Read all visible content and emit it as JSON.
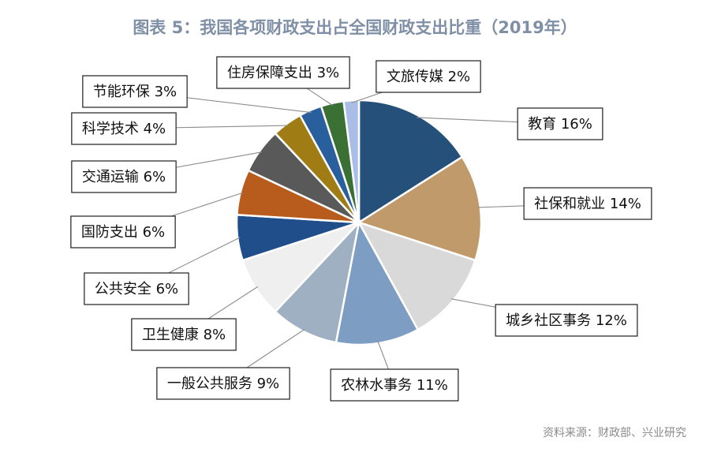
{
  "title": "图表 5：我国各项财政支出占全国财政支出比重（2019年）",
  "source": "资料来源：财政部、兴业研究",
  "chart_data": {
    "type": "pie",
    "title": "图表 5：我国各项财政支出占全国财政支出比重（2019年）",
    "unit": "%",
    "slices": [
      {
        "name": "教育",
        "value": 16,
        "label": "教育 16%",
        "color": "#24507a"
      },
      {
        "name": "社保和就业",
        "value": 14,
        "label": "社保和就业 14%",
        "color": "#c09a6b"
      },
      {
        "name": "城乡社区事务",
        "value": 12,
        "label": "城乡社区事务 12%",
        "color": "#d9d9d9"
      },
      {
        "name": "农林水事务",
        "value": 11,
        "label": "农林水事务 11%",
        "color": "#7d9ec2"
      },
      {
        "name": "一般公共服务",
        "value": 9,
        "label": "一般公共服务 9%",
        "color": "#9fb0c2"
      },
      {
        "name": "卫生健康",
        "value": 8,
        "label": "卫生健康 8%",
        "color": "#efefef"
      },
      {
        "name": "公共安全",
        "value": 6,
        "label": "公共安全 6%",
        "color": "#1f4e8a"
      },
      {
        "name": "国防支出",
        "value": 6,
        "label": "国防支出 6%",
        "color": "#b85c1e"
      },
      {
        "name": "交通运输",
        "value": 6,
        "label": "交通运输 6%",
        "color": "#595959"
      },
      {
        "name": "科学技术",
        "value": 4,
        "label": "科学技术 4%",
        "color": "#a07c14"
      },
      {
        "name": "节能环保",
        "value": 3,
        "label": "节能环保 3%",
        "color": "#2a5f9e"
      },
      {
        "name": "住房保障支出",
        "value": 3,
        "label": "住房保障支出 3%",
        "color": "#3b7034"
      },
      {
        "name": "文旅传媒",
        "value": 2,
        "label": "文旅传媒 2%",
        "color": "#a9bde6"
      }
    ]
  }
}
